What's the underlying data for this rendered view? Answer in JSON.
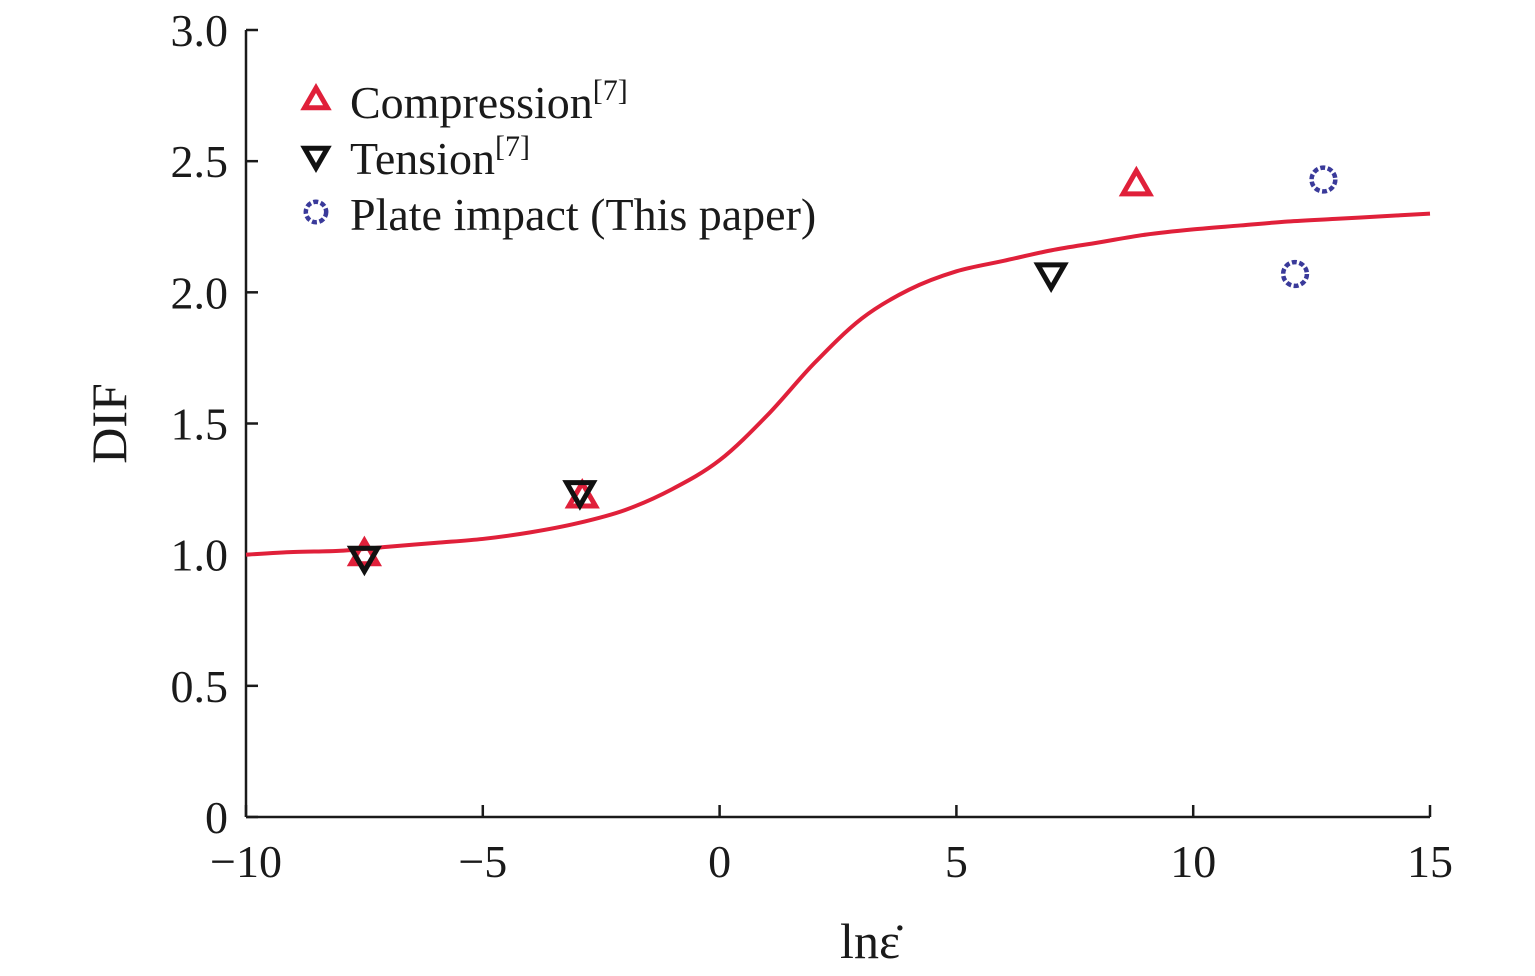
{
  "chart_data": {
    "type": "scatter",
    "xlabel": "lnε̇",
    "ylabel": "DIF",
    "xlim": [
      -10,
      15
    ],
    "ylim": [
      0,
      3.0
    ],
    "x_ticks": [
      -10,
      -5,
      0,
      5,
      10,
      15
    ],
    "x_tick_labels": [
      "−10",
      "−5",
      "0",
      "5",
      "10",
      "15"
    ],
    "y_ticks": [
      0,
      0.5,
      1.0,
      1.5,
      2.0,
      2.5,
      3.0
    ],
    "y_tick_labels": [
      "0",
      "0.5",
      "1.0",
      "1.5",
      "2.0",
      "2.5",
      "3.0"
    ],
    "grid": false,
    "legend_position": "top-left",
    "series": [
      {
        "name": "Compression",
        "name_sup": "[7]",
        "marker": "triangle-up",
        "color": "#e0203a",
        "points": [
          {
            "x": -7.5,
            "y": 1.0
          },
          {
            "x": -2.9,
            "y": 1.22
          },
          {
            "x": 8.8,
            "y": 2.41
          }
        ]
      },
      {
        "name": "Tension",
        "name_sup": "[7]",
        "marker": "triangle-down",
        "color": "#111111",
        "points": [
          {
            "x": -7.5,
            "y": 0.99
          },
          {
            "x": -2.95,
            "y": 1.24
          },
          {
            "x": 7.0,
            "y": 2.07
          }
        ]
      },
      {
        "name": "Plate impact (This paper)",
        "marker": "circle",
        "color": "#3a3a9a",
        "points": [
          {
            "x": 12.15,
            "y": 2.07
          },
          {
            "x": 12.75,
            "y": 2.43
          }
        ]
      }
    ],
    "fit_curve": {
      "color": "#e0203a",
      "points": [
        [
          -10,
          1.0
        ],
        [
          -9,
          1.01
        ],
        [
          -8,
          1.015
        ],
        [
          -7,
          1.03
        ],
        [
          -6,
          1.045
        ],
        [
          -5,
          1.06
        ],
        [
          -4,
          1.085
        ],
        [
          -3,
          1.12
        ],
        [
          -2,
          1.17
        ],
        [
          -1,
          1.25
        ],
        [
          0,
          1.36
        ],
        [
          1,
          1.53
        ],
        [
          2,
          1.73
        ],
        [
          3,
          1.9
        ],
        [
          4,
          2.01
        ],
        [
          5,
          2.08
        ],
        [
          6,
          2.12
        ],
        [
          7,
          2.16
        ],
        [
          8,
          2.19
        ],
        [
          9,
          2.22
        ],
        [
          10,
          2.24
        ],
        [
          11,
          2.255
        ],
        [
          12,
          2.27
        ],
        [
          13,
          2.28
        ],
        [
          14,
          2.29
        ],
        [
          15,
          2.3
        ]
      ]
    }
  }
}
